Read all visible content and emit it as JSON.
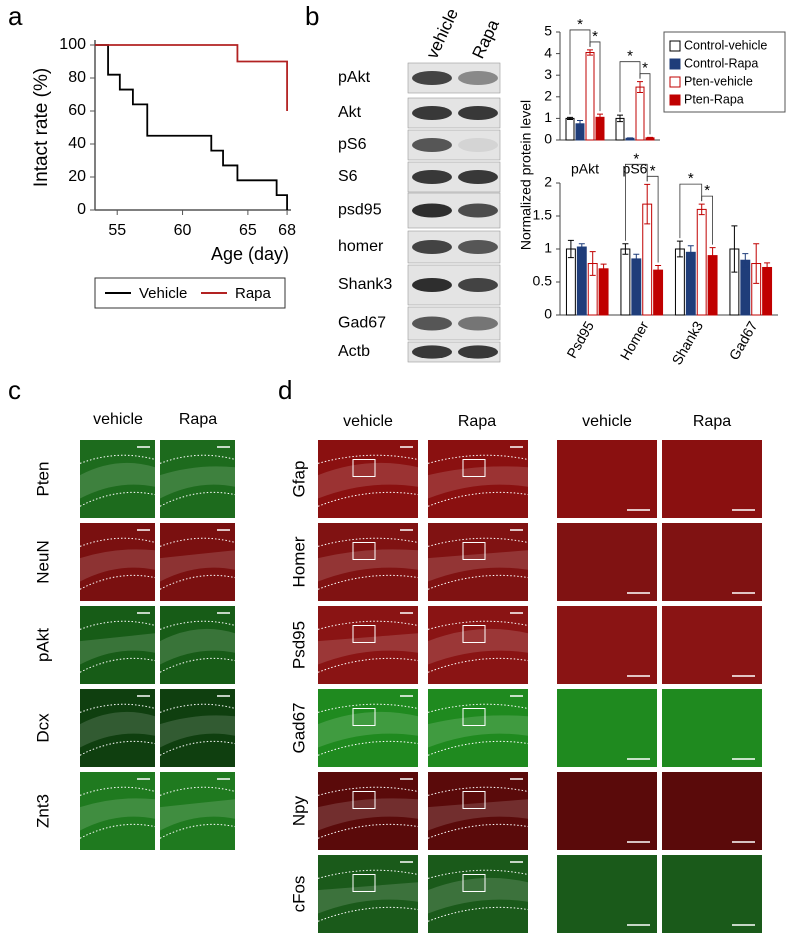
{
  "panels": [
    "a",
    "b",
    "c",
    "d"
  ],
  "chart_data": [
    {
      "type": "line",
      "step": true,
      "ylabel": "Intact rate (%)",
      "xlabel": "Age (day)",
      "xlim": [
        53.3,
        68.3
      ],
      "xticks": [
        55,
        60,
        65,
        68
      ],
      "ylim": [
        0,
        100
      ],
      "yticks": [
        0,
        20,
        40,
        60,
        80,
        100
      ],
      "legend": "bottom",
      "series": [
        {
          "name": "Vehicle",
          "color": "#000000",
          "x": [
            53.3,
            54.3,
            55.2,
            56.2,
            57.3,
            62.2,
            63.1,
            64.2,
            67.2,
            68
          ],
          "values": [
            100,
            82,
            73,
            64,
            45,
            36,
            27,
            18,
            9,
            0
          ]
        },
        {
          "name": "Rapa",
          "color": "#b22222",
          "x": [
            53.3,
            64.2,
            68
          ],
          "values": [
            100,
            90,
            60
          ]
        }
      ]
    },
    {
      "type": "bar",
      "categories": [
        "pAkt",
        "pS6"
      ],
      "ylim": [
        0,
        5
      ],
      "yticks": [
        0,
        1,
        2,
        3,
        4,
        5
      ],
      "legend": "right",
      "series": [
        {
          "name": "Control-vehicle",
          "color": "#ffffff",
          "edge": "#000000",
          "values": [
            1.0,
            1.0
          ],
          "errors": [
            0.05,
            0.15
          ]
        },
        {
          "name": "Control-Rapa",
          "color": "#1f3d7a",
          "edge": "#1f3d7a",
          "values": [
            0.75,
            0.08
          ],
          "errors": [
            0.15,
            0.02
          ]
        },
        {
          "name": "Pten-vehicle",
          "color": "#ffffff",
          "edge": "#c00000",
          "values": [
            4.05,
            2.45
          ],
          "errors": [
            0.12,
            0.25
          ]
        },
        {
          "name": "Pten-Rapa",
          "color": "#c00000",
          "edge": "#c00000",
          "values": [
            1.05,
            0.1
          ],
          "errors": [
            0.15,
            0.02
          ]
        }
      ],
      "significance": [
        {
          "category": 0,
          "pair": [
            0,
            2
          ],
          "label": "*"
        },
        {
          "category": 0,
          "pair": [
            2,
            3
          ],
          "label": "*"
        },
        {
          "category": 1,
          "pair": [
            0,
            2
          ],
          "label": "*"
        },
        {
          "category": 1,
          "pair": [
            2,
            3
          ],
          "label": "*"
        }
      ]
    },
    {
      "type": "bar",
      "ylabel": "Normalized protein level",
      "categories": [
        "Psd95",
        "Homer",
        "Shank3",
        "Gad67"
      ],
      "ylim": [
        0,
        2
      ],
      "yticks": [
        0,
        0.5,
        1,
        1.5,
        2
      ],
      "rotate_labels": true,
      "series": [
        {
          "color": "#ffffff",
          "edge": "#000000",
          "values": [
            1.0,
            1.0,
            1.0,
            1.0
          ],
          "errors": [
            0.13,
            0.08,
            0.12,
            0.35
          ]
        },
        {
          "color": "#1f3d7a",
          "edge": "#1f3d7a",
          "values": [
            1.03,
            0.85,
            0.95,
            0.83
          ],
          "errors": [
            0.05,
            0.07,
            0.1,
            0.1
          ]
        },
        {
          "color": "#ffffff",
          "edge": "#c00000",
          "values": [
            0.78,
            1.68,
            1.6,
            0.78
          ],
          "errors": [
            0.18,
            0.3,
            0.08,
            0.3
          ]
        },
        {
          "color": "#c00000",
          "edge": "#c00000",
          "values": [
            0.7,
            0.68,
            0.9,
            0.72
          ],
          "errors": [
            0.07,
            0.07,
            0.12,
            0.07
          ]
        }
      ],
      "significance": [
        {
          "category": 1,
          "pair": [
            0,
            2
          ],
          "label": "*"
        },
        {
          "category": 1,
          "pair": [
            2,
            3
          ],
          "label": "*"
        },
        {
          "category": 2,
          "pair": [
            0,
            2
          ],
          "label": "*"
        },
        {
          "category": 2,
          "pair": [
            2,
            3
          ],
          "label": "*"
        }
      ]
    }
  ],
  "blot": {
    "columns": [
      "vehicle",
      "Rapa"
    ],
    "rows": [
      "pAkt",
      "Akt",
      "pS6",
      "S6",
      "psd95",
      "homer",
      "Shank3",
      "Gad67",
      "Actb"
    ]
  },
  "panel_c": {
    "columns": [
      "vehicle",
      "Rapa"
    ],
    "rows": [
      {
        "name": "Pten",
        "color": "#1d6b1d"
      },
      {
        "name": "NeuN",
        "color": "#7a1010"
      },
      {
        "name": "pAkt",
        "color": "#175c17"
      },
      {
        "name": "Dcx",
        "color": "#0f3f0f"
      },
      {
        "name": "Znt3",
        "color": "#1f7a1f"
      }
    ]
  },
  "panel_d": {
    "columns": [
      "vehicle",
      "Rapa"
    ],
    "zoom_columns": [
      "vehicle",
      "Rapa"
    ],
    "rows": [
      {
        "name": "Gfap",
        "color": "#8a1010"
      },
      {
        "name": "Homer",
        "color": "#801212"
      },
      {
        "name": "Psd95",
        "color": "#8a1414"
      },
      {
        "name": "Gad67",
        "color": "#1f8a1f"
      },
      {
        "name": "Npy",
        "color": "#5a0a0a"
      },
      {
        "name": "cFos",
        "color": "#1a5a1a"
      }
    ]
  }
}
